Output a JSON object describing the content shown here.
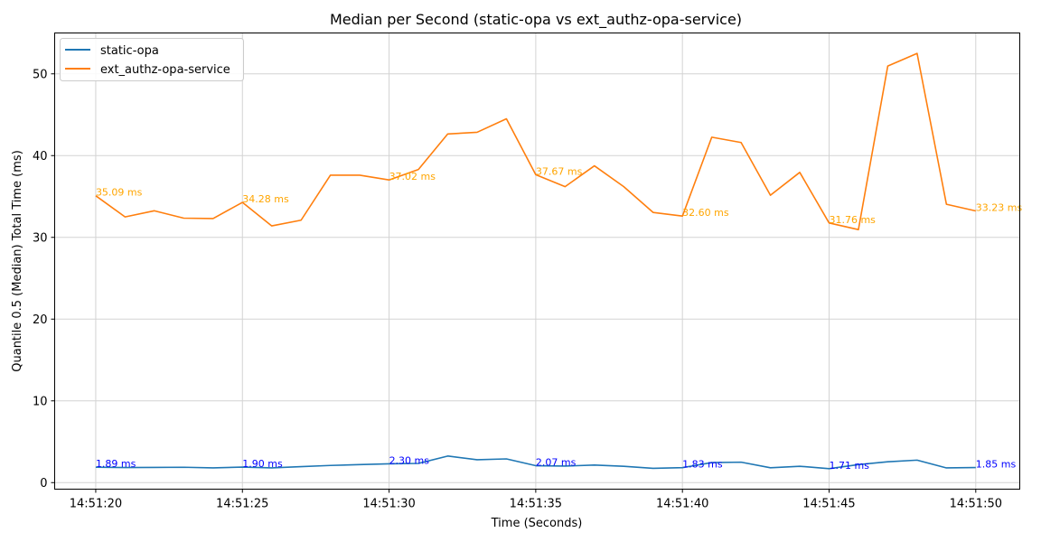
{
  "chart_data": {
    "type": "line",
    "title": "Median per Second (static-opa vs ext_authz-opa-service)",
    "xlabel": "Time (Seconds)",
    "ylabel": "Quantile 0.5 (Median) Total Time (ms)",
    "x_ticks": [
      "14:51:20",
      "14:51:25",
      "14:51:30",
      "14:51:35",
      "14:51:40",
      "14:51:45",
      "14:51:50"
    ],
    "y_ticks": [
      0,
      10,
      20,
      30,
      40,
      50
    ],
    "xlim": [
      -1.4,
      31.5
    ],
    "ylim": [
      -0.8,
      55
    ],
    "grid": true,
    "legend_position": "top-left",
    "x": [
      "14:51:20",
      "14:51:21",
      "14:51:22",
      "14:51:23",
      "14:51:24",
      "14:51:25",
      "14:51:26",
      "14:51:27",
      "14:51:28",
      "14:51:29",
      "14:51:30",
      "14:51:31",
      "14:51:32",
      "14:51:33",
      "14:51:34",
      "14:51:35",
      "14:51:36",
      "14:51:37",
      "14:51:38",
      "14:51:39",
      "14:51:40",
      "14:51:41",
      "14:51:42",
      "14:51:43",
      "14:51:44",
      "14:51:45",
      "14:51:46",
      "14:51:47",
      "14:51:48",
      "14:51:49",
      "14:51:50"
    ],
    "series": [
      {
        "name": "static-opa",
        "color": "#1f77b4",
        "values": [
          1.89,
          1.85,
          1.86,
          1.88,
          1.8,
          1.9,
          1.8,
          1.95,
          2.1,
          2.2,
          2.3,
          2.35,
          3.25,
          2.8,
          2.9,
          2.07,
          2.02,
          2.15,
          2.0,
          1.75,
          1.83,
          2.45,
          2.5,
          1.82,
          2.0,
          1.71,
          2.2,
          2.55,
          2.75,
          1.8,
          1.85
        ],
        "annotation_color": "#0000ff",
        "annotations": [
          {
            "x": "14:51:20",
            "y": 1.89,
            "text": "1.89 ms"
          },
          {
            "x": "14:51:25",
            "y": 1.9,
            "text": "1.90 ms"
          },
          {
            "x": "14:51:30",
            "y": 2.3,
            "text": "2.30 ms"
          },
          {
            "x": "14:51:35",
            "y": 2.07,
            "text": "2.07 ms"
          },
          {
            "x": "14:51:40",
            "y": 1.83,
            "text": "1.83 ms"
          },
          {
            "x": "14:51:45",
            "y": 1.71,
            "text": "1.71 ms"
          },
          {
            "x": "14:51:50",
            "y": 1.85,
            "text": "1.85 ms"
          }
        ]
      },
      {
        "name": "ext_authz-opa-service",
        "color": "#ff7f0e",
        "values": [
          35.09,
          32.5,
          33.25,
          32.35,
          32.3,
          34.28,
          31.4,
          32.1,
          37.6,
          37.6,
          37.02,
          38.3,
          42.65,
          42.85,
          44.5,
          37.67,
          36.2,
          38.75,
          36.2,
          33.05,
          32.6,
          42.25,
          41.6,
          35.15,
          37.95,
          31.76,
          30.95,
          50.95,
          52.5,
          34.05,
          33.23
        ],
        "annotation_color": "#ffa500",
        "annotations": [
          {
            "x": "14:51:20",
            "y": 35.09,
            "text": "35.09 ms"
          },
          {
            "x": "14:51:25",
            "y": 34.28,
            "text": "34.28 ms"
          },
          {
            "x": "14:51:30",
            "y": 37.02,
            "text": "37.02 ms"
          },
          {
            "x": "14:51:35",
            "y": 37.67,
            "text": "37.67 ms"
          },
          {
            "x": "14:51:40",
            "y": 32.6,
            "text": "32.60 ms"
          },
          {
            "x": "14:51:45",
            "y": 31.76,
            "text": "31.76 ms"
          },
          {
            "x": "14:51:50",
            "y": 33.23,
            "text": "33.23 ms"
          }
        ]
      }
    ]
  }
}
